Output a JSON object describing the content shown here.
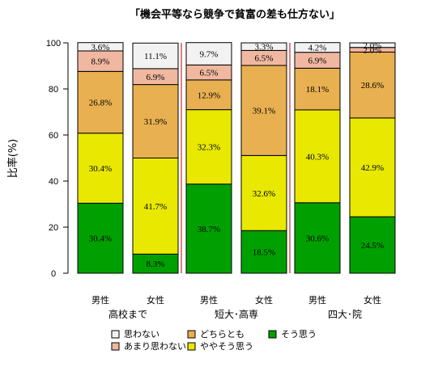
{
  "chart_data": {
    "type": "bar",
    "stacked": true,
    "title": "「機会平等なら競争で貧富の差も仕方ない」",
    "ylabel": "比率(%)",
    "ylim": [
      0,
      100
    ],
    "yticks": [
      "0",
      "20",
      "40",
      "60",
      "80",
      "100"
    ],
    "categories": [
      "男性",
      "女性",
      "男性",
      "女性",
      "男性",
      "女性"
    ],
    "groups": [
      "高校まで",
      "短大･高専",
      "四大･院"
    ],
    "colors": {
      "思わない": "#f2f2f2",
      "あまり思わない": "#f0b8a0",
      "どちらとも": "#e8b050",
      "ややそう思う": "#e8e800",
      "そう思う": "#00a000",
      "separator": "#e08080"
    },
    "series": [
      {
        "name": "そう思う",
        "values": [
          30.4,
          8.3,
          38.7,
          18.5,
          30.6,
          24.5
        ],
        "labels": [
          "30.4%",
          "8.3%",
          "38.7%",
          "18.5%",
          "30.6%",
          "24.5%"
        ]
      },
      {
        "name": "ややそう思う",
        "values": [
          30.4,
          41.7,
          32.3,
          32.6,
          40.3,
          42.9
        ],
        "labels": [
          "30.4%",
          "41.7%",
          "32.3%",
          "32.6%",
          "40.3%",
          "42.9%"
        ]
      },
      {
        "name": "どちらとも",
        "values": [
          26.8,
          31.9,
          12.9,
          39.1,
          18.1,
          28.6
        ],
        "labels": [
          "26.8%",
          "31.9%",
          "12.9%",
          "39.1%",
          "18.1%",
          "28.6%"
        ]
      },
      {
        "name": "あまり思わない",
        "values": [
          8.9,
          6.9,
          6.5,
          6.5,
          6.9,
          2.0
        ],
        "labels": [
          "8.9%",
          "6.9%",
          "6.5%",
          "6.5%",
          "6.9%",
          "2.0%"
        ]
      },
      {
        "name": "思わない",
        "values": [
          3.6,
          11.1,
          9.7,
          3.3,
          4.2,
          2.0
        ],
        "labels": [
          "3.6%",
          "11.1%",
          "9.7%",
          "3.3%",
          "4.2%",
          "2.0%"
        ]
      }
    ],
    "legend": {
      "placement": "bottom",
      "entries": [
        "思わない",
        "あまり思わない",
        "どちらとも",
        "ややそう思う",
        "そう思う"
      ]
    }
  }
}
